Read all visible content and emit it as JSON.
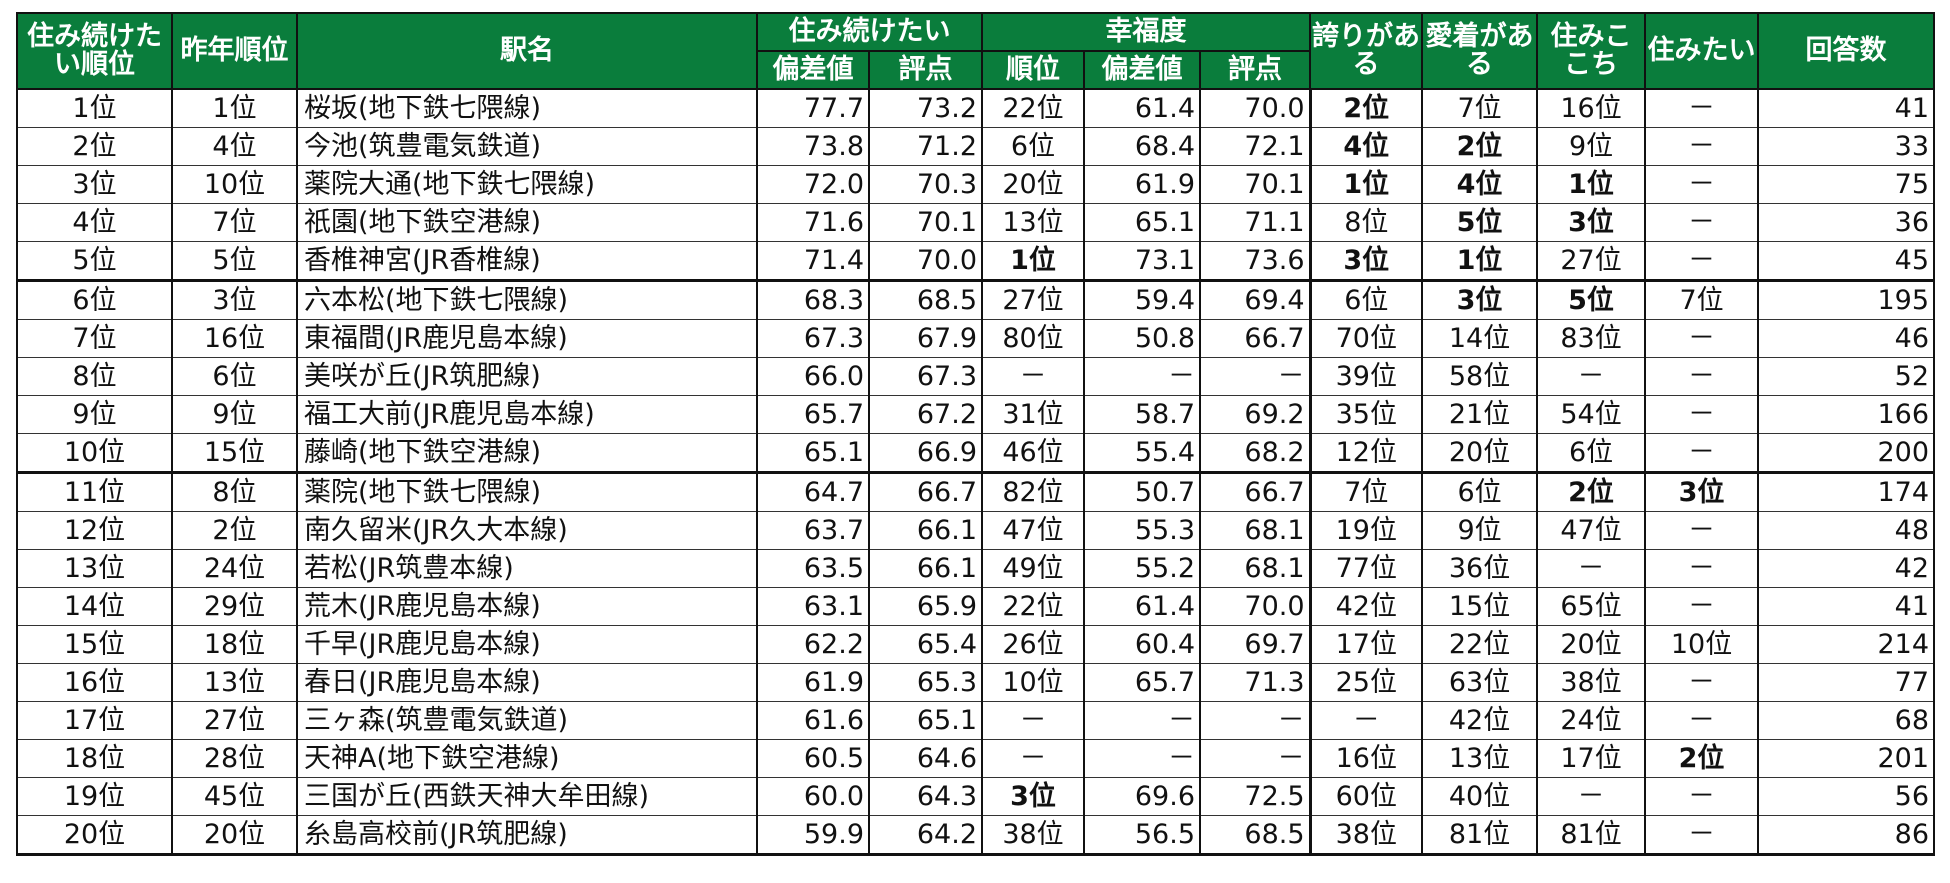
{
  "header": {
    "rank": "住み続けたい順位",
    "prev_rank": "昨年順位",
    "station": "駅名",
    "sumitsuzuke": "住み続けたい",
    "kofukudo": "幸福度",
    "hokori": "誇りがある",
    "aichaku": "愛着がある",
    "sumigokochi": "住みここち",
    "sumitai": "住みたい",
    "answers": "回答数",
    "hensachi": "偏差値",
    "hyoten": "評点",
    "juni": "順位"
  },
  "rows": [
    {
      "rank": "1位",
      "prev": "1位",
      "station": "桜坂(地下鉄七隈線)",
      "s_dev": "77.7",
      "s_score": "73.2",
      "h_rank": "22位",
      "h_dev": "61.4",
      "h_score": "70.0",
      "pride": "2位",
      "attach": "7位",
      "comfort": "16位",
      "want": "－",
      "n": "41"
    },
    {
      "rank": "2位",
      "prev": "4位",
      "station": "今池(筑豊電気鉄道)",
      "s_dev": "73.8",
      "s_score": "71.2",
      "h_rank": "6位",
      "h_dev": "68.4",
      "h_score": "72.1",
      "pride": "4位",
      "attach": "2位",
      "comfort": "9位",
      "want": "－",
      "n": "33"
    },
    {
      "rank": "3位",
      "prev": "10位",
      "station": "薬院大通(地下鉄七隈線)",
      "s_dev": "72.0",
      "s_score": "70.3",
      "h_rank": "20位",
      "h_dev": "61.9",
      "h_score": "70.1",
      "pride": "1位",
      "attach": "4位",
      "comfort": "1位",
      "want": "－",
      "n": "75"
    },
    {
      "rank": "4位",
      "prev": "7位",
      "station": "祇園(地下鉄空港線)",
      "s_dev": "71.6",
      "s_score": "70.1",
      "h_rank": "13位",
      "h_dev": "65.1",
      "h_score": "71.1",
      "pride": "8位",
      "attach": "5位",
      "comfort": "3位",
      "want": "－",
      "n": "36"
    },
    {
      "rank": "5位",
      "prev": "5位",
      "station": "香椎神宮(JR香椎線)",
      "s_dev": "71.4",
      "s_score": "70.0",
      "h_rank": "1位",
      "h_dev": "73.1",
      "h_score": "73.6",
      "pride": "3位",
      "attach": "1位",
      "comfort": "27位",
      "want": "－",
      "n": "45"
    },
    {
      "rank": "6位",
      "prev": "3位",
      "station": "六本松(地下鉄七隈線)",
      "s_dev": "68.3",
      "s_score": "68.5",
      "h_rank": "27位",
      "h_dev": "59.4",
      "h_score": "69.4",
      "pride": "6位",
      "attach": "3位",
      "comfort": "5位",
      "want": "7位",
      "n": "195"
    },
    {
      "rank": "7位",
      "prev": "16位",
      "station": "東福間(JR鹿児島本線)",
      "s_dev": "67.3",
      "s_score": "67.9",
      "h_rank": "80位",
      "h_dev": "50.8",
      "h_score": "66.7",
      "pride": "70位",
      "attach": "14位",
      "comfort": "83位",
      "want": "－",
      "n": "46"
    },
    {
      "rank": "8位",
      "prev": "6位",
      "station": "美咲が丘(JR筑肥線)",
      "s_dev": "66.0",
      "s_score": "67.3",
      "h_rank": "－",
      "h_dev": "－",
      "h_score": "－",
      "pride": "39位",
      "attach": "58位",
      "comfort": "－",
      "want": "－",
      "n": "52"
    },
    {
      "rank": "9位",
      "prev": "9位",
      "station": "福工大前(JR鹿児島本線)",
      "s_dev": "65.7",
      "s_score": "67.2",
      "h_rank": "31位",
      "h_dev": "58.7",
      "h_score": "69.2",
      "pride": "35位",
      "attach": "21位",
      "comfort": "54位",
      "want": "－",
      "n": "166"
    },
    {
      "rank": "10位",
      "prev": "15位",
      "station": "藤崎(地下鉄空港線)",
      "s_dev": "65.1",
      "s_score": "66.9",
      "h_rank": "46位",
      "h_dev": "55.4",
      "h_score": "68.2",
      "pride": "12位",
      "attach": "20位",
      "comfort": "6位",
      "want": "－",
      "n": "200"
    },
    {
      "rank": "11位",
      "prev": "8位",
      "station": "薬院(地下鉄七隈線)",
      "s_dev": "64.7",
      "s_score": "66.7",
      "h_rank": "82位",
      "h_dev": "50.7",
      "h_score": "66.7",
      "pride": "7位",
      "attach": "6位",
      "comfort": "2位",
      "want": "3位",
      "n": "174"
    },
    {
      "rank": "12位",
      "prev": "2位",
      "station": "南久留米(JR久大本線)",
      "s_dev": "63.7",
      "s_score": "66.1",
      "h_rank": "47位",
      "h_dev": "55.3",
      "h_score": "68.1",
      "pride": "19位",
      "attach": "9位",
      "comfort": "47位",
      "want": "－",
      "n": "48"
    },
    {
      "rank": "13位",
      "prev": "24位",
      "station": "若松(JR筑豊本線)",
      "s_dev": "63.5",
      "s_score": "66.1",
      "h_rank": "49位",
      "h_dev": "55.2",
      "h_score": "68.1",
      "pride": "77位",
      "attach": "36位",
      "comfort": "－",
      "want": "－",
      "n": "42"
    },
    {
      "rank": "14位",
      "prev": "29位",
      "station": "荒木(JR鹿児島本線)",
      "s_dev": "63.1",
      "s_score": "65.9",
      "h_rank": "22位",
      "h_dev": "61.4",
      "h_score": "70.0",
      "pride": "42位",
      "attach": "15位",
      "comfort": "65位",
      "want": "－",
      "n": "41"
    },
    {
      "rank": "15位",
      "prev": "18位",
      "station": "千早(JR鹿児島本線)",
      "s_dev": "62.2",
      "s_score": "65.4",
      "h_rank": "26位",
      "h_dev": "60.4",
      "h_score": "69.7",
      "pride": "17位",
      "attach": "22位",
      "comfort": "20位",
      "want": "10位",
      "n": "214"
    },
    {
      "rank": "16位",
      "prev": "13位",
      "station": "春日(JR鹿児島本線)",
      "s_dev": "61.9",
      "s_score": "65.3",
      "h_rank": "10位",
      "h_dev": "65.7",
      "h_score": "71.3",
      "pride": "25位",
      "attach": "63位",
      "comfort": "38位",
      "want": "－",
      "n": "77"
    },
    {
      "rank": "17位",
      "prev": "27位",
      "station": "三ヶ森(筑豊電気鉄道)",
      "s_dev": "61.6",
      "s_score": "65.1",
      "h_rank": "－",
      "h_dev": "－",
      "h_score": "－",
      "pride": "－",
      "attach": "42位",
      "comfort": "24位",
      "want": "－",
      "n": "68"
    },
    {
      "rank": "18位",
      "prev": "28位",
      "station": "天神A(地下鉄空港線)",
      "s_dev": "60.5",
      "s_score": "64.6",
      "h_rank": "－",
      "h_dev": "－",
      "h_score": "－",
      "pride": "16位",
      "attach": "13位",
      "comfort": "17位",
      "want": "2位",
      "n": "201"
    },
    {
      "rank": "19位",
      "prev": "45位",
      "station": "三国が丘(西鉄天神大牟田線)",
      "s_dev": "60.0",
      "s_score": "64.3",
      "h_rank": "3位",
      "h_dev": "69.6",
      "h_score": "72.5",
      "pride": "60位",
      "attach": "40位",
      "comfort": "－",
      "want": "－",
      "n": "56"
    },
    {
      "rank": "20位",
      "prev": "20位",
      "station": "糸島高校前(JR筑肥線)",
      "s_dev": "59.9",
      "s_score": "64.2",
      "h_rank": "38位",
      "h_dev": "56.5",
      "h_score": "68.5",
      "pride": "38位",
      "attach": "81位",
      "comfort": "81位",
      "want": "－",
      "n": "86"
    }
  ]
}
